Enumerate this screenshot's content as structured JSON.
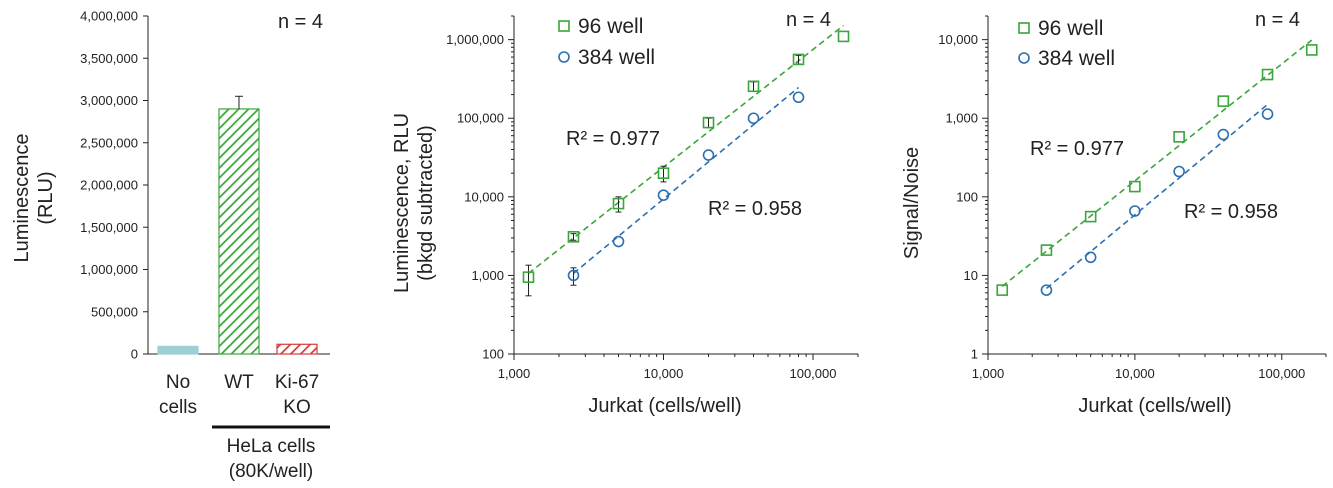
{
  "chart_data": [
    {
      "type": "bar",
      "ylabel_line1": "Luminescence",
      "ylabel_line2": "(RLU)",
      "ylim": [
        0,
        4000000
      ],
      "yticks": [
        "0",
        "500,000",
        "1,000,000",
        "1,500,000",
        "2,000,000",
        "2,500,000",
        "3,000,000",
        "3,500,000",
        "4,000,000"
      ],
      "ytick_values": [
        0,
        500000,
        1000000,
        1500000,
        2000000,
        2500000,
        3000000,
        3500000,
        4000000
      ],
      "categories": [
        {
          "line1": "No",
          "line2": "cells"
        },
        {
          "line1": "WT",
          "line2": ""
        },
        {
          "line1": "Ki-67",
          "line2": "KO"
        }
      ],
      "values": [
        90000,
        2900000,
        115000
      ],
      "errors": [
        0,
        150000,
        0
      ],
      "colors": [
        "#9ccfd6",
        "#3aa53a",
        "#d83a3a"
      ],
      "patterns": [
        "solid",
        "hatch",
        "hatch"
      ],
      "group_label_line1": "HeLa cells",
      "group_label_line2": "(80K/well)",
      "annotation": "n = 4"
    },
    {
      "type": "scatter",
      "xscale": "log",
      "yscale": "log",
      "xlim": [
        1000,
        200000
      ],
      "ylim": [
        100,
        2000000
      ],
      "xticks": [
        "1,000",
        "10,000",
        "100,000"
      ],
      "xtick_values": [
        1000,
        10000,
        100000
      ],
      "yticks": [
        "100",
        "1,000",
        "10,000",
        "100,000",
        "1,000,000"
      ],
      "ytick_values": [
        100,
        1000,
        10000,
        100000,
        1000000
      ],
      "xlabel": "Jurkat (cells/well)",
      "ylabel_line1": "Luminescence, RLU",
      "ylabel_line2": "(bkgd subtracted)",
      "annotation": "n = 4",
      "series": [
        {
          "name": "96 well",
          "marker": "square",
          "color": "#3aa53a",
          "x": [
            1250,
            2500,
            5000,
            10000,
            20000,
            40000,
            80000,
            160000
          ],
          "y": [
            950,
            3100,
            8200,
            20000,
            88000,
            255000,
            560000,
            1100000
          ],
          "err": [
            400,
            300,
            1800,
            4500,
            12000,
            35000,
            70000,
            0
          ],
          "r2": "R² = 0.977"
        },
        {
          "name": "384 well",
          "marker": "circle",
          "color": "#2b6fb0",
          "x": [
            2500,
            5000,
            10000,
            20000,
            40000,
            80000
          ],
          "y": [
            1000,
            2700,
            10500,
            34000,
            100000,
            185000
          ],
          "err": [
            250,
            0,
            0,
            0,
            0,
            0
          ],
          "r2": "R² = 0.958"
        }
      ]
    },
    {
      "type": "scatter",
      "xscale": "log",
      "yscale": "log",
      "xlim": [
        1000,
        200000
      ],
      "ylim": [
        1,
        20000
      ],
      "xticks": [
        "1,000",
        "10,000",
        "100,000"
      ],
      "xtick_values": [
        1000,
        10000,
        100000
      ],
      "yticks": [
        "1",
        "10",
        "100",
        "1,000",
        "10,000"
      ],
      "ytick_values": [
        1,
        10,
        100,
        1000,
        10000
      ],
      "xlabel": "Jurkat (cells/well)",
      "ylabel_line1": "Signal/Noise",
      "annotation": "n = 4",
      "series": [
        {
          "name": "96 well",
          "marker": "square",
          "color": "#3aa53a",
          "x": [
            1250,
            2500,
            5000,
            10000,
            20000,
            40000,
            80000,
            160000
          ],
          "y": [
            6.5,
            21,
            56,
            135,
            580,
            1650,
            3600,
            7400
          ],
          "err": [
            0,
            0,
            0,
            0,
            0,
            0,
            0,
            0
          ],
          "r2": "R² = 0.977"
        },
        {
          "name": "384 well",
          "marker": "circle",
          "color": "#2b6fb0",
          "x": [
            2500,
            5000,
            10000,
            20000,
            40000,
            80000
          ],
          "y": [
            6.5,
            17,
            66,
            210,
            620,
            1130
          ],
          "err": [
            0,
            0,
            0,
            0,
            0,
            0
          ],
          "r2": "R² = 0.958"
        }
      ]
    }
  ]
}
